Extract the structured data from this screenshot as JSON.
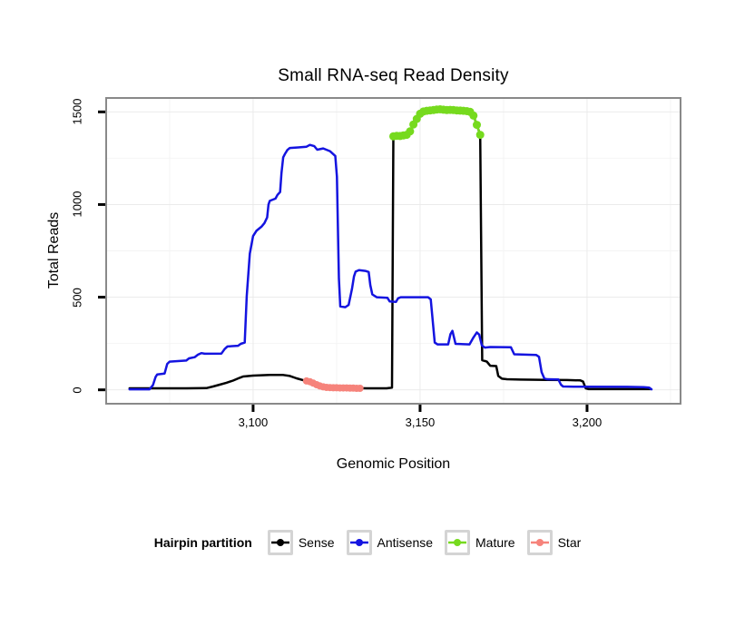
{
  "title": "Small RNA-seq Read Density",
  "legend": {
    "title": "Hairpin partition",
    "items": [
      {
        "label": "Sense",
        "color": "#000000"
      },
      {
        "label": "Antisense",
        "color": "#1414e0"
      },
      {
        "label": "Mature",
        "color": "#76da1e"
      },
      {
        "label": "Star",
        "color": "#f6837b"
      }
    ]
  },
  "chart_data": {
    "type": "line",
    "title": "Small RNA-seq Read Density",
    "xlabel": "Genomic Position",
    "ylabel": "Total Reads",
    "xlim": [
      3056,
      3228
    ],
    "ylim": [
      -75,
      1575
    ],
    "grid": true,
    "legend_position": "bottom",
    "x_ticks": [
      {
        "v": 3100,
        "label": "3,100"
      },
      {
        "v": 3150,
        "label": "3,150"
      },
      {
        "v": 3200,
        "label": "3,200"
      }
    ],
    "y_ticks": [
      {
        "v": 0,
        "label": "0"
      },
      {
        "v": 500,
        "label": "500"
      },
      {
        "v": 1000,
        "label": "1000"
      },
      {
        "v": 1500,
        "label": "1500"
      }
    ],
    "x_minor": [
      3075,
      3125,
      3175,
      3225
    ],
    "y_minor": [
      250,
      750,
      1250
    ],
    "panel_border_color": "#898989",
    "grid_major_color": "#ebebeb",
    "grid_minor_color": "#f4f4f4",
    "series": [
      {
        "name": "Sense",
        "color": "#000000",
        "style": "line",
        "points": [
          [
            3063,
            8
          ],
          [
            3070,
            8
          ],
          [
            3080,
            8
          ],
          [
            3086,
            9
          ],
          [
            3088,
            18
          ],
          [
            3090,
            28
          ],
          [
            3092,
            38
          ],
          [
            3094,
            50
          ],
          [
            3096,
            65
          ],
          [
            3097,
            72
          ],
          [
            3100,
            77
          ],
          [
            3105,
            80
          ],
          [
            3109,
            80
          ],
          [
            3111,
            75
          ],
          [
            3113,
            62
          ],
          [
            3115,
            52
          ],
          [
            3117,
            42
          ],
          [
            3119,
            28
          ],
          [
            3121,
            16
          ],
          [
            3123,
            12
          ],
          [
            3126,
            10
          ],
          [
            3130,
            9
          ],
          [
            3134,
            8
          ],
          [
            3140,
            8
          ],
          [
            3141.6,
            12
          ],
          [
            3142,
            1365
          ],
          [
            3143,
            1371
          ],
          [
            3144,
            1370
          ],
          [
            3145,
            1373
          ],
          [
            3146,
            1376
          ],
          [
            3147,
            1395
          ],
          [
            3148,
            1432
          ],
          [
            3149,
            1462
          ],
          [
            3150,
            1490
          ],
          [
            3151,
            1502
          ],
          [
            3153,
            1508
          ],
          [
            3155,
            1513
          ],
          [
            3158,
            1510
          ],
          [
            3161,
            1508
          ],
          [
            3164,
            1504
          ],
          [
            3165,
            1500
          ],
          [
            3166,
            1480
          ],
          [
            3167,
            1430
          ],
          [
            3168,
            1376
          ],
          [
            3168.6,
            160
          ],
          [
            3170,
            152
          ],
          [
            3171,
            130
          ],
          [
            3172.8,
            128
          ],
          [
            3173.4,
            75
          ],
          [
            3174.5,
            60
          ],
          [
            3176,
            57
          ],
          [
            3180,
            55
          ],
          [
            3188,
            54
          ],
          [
            3194,
            53
          ],
          [
            3198,
            51
          ],
          [
            3198.8,
            45
          ],
          [
            3199.6,
            8
          ],
          [
            3200.5,
            4
          ],
          [
            3210,
            4
          ],
          [
            3219,
            4
          ]
        ]
      },
      {
        "name": "Antisense",
        "color": "#1414e0",
        "style": "line",
        "points": [
          [
            3063,
            3
          ],
          [
            3069,
            3
          ],
          [
            3070,
            25
          ],
          [
            3070.8,
            70
          ],
          [
            3071.3,
            83
          ],
          [
            3073.5,
            88
          ],
          [
            3074.3,
            140
          ],
          [
            3075,
            152
          ],
          [
            3080,
            158
          ],
          [
            3080.8,
            170
          ],
          [
            3082.5,
            176
          ],
          [
            3083.5,
            190
          ],
          [
            3084.5,
            198
          ],
          [
            3085.5,
            195
          ],
          [
            3090.5,
            196
          ],
          [
            3091.5,
            220
          ],
          [
            3092.3,
            234
          ],
          [
            3095.5,
            238
          ],
          [
            3096.3,
            248
          ],
          [
            3097.5,
            255
          ],
          [
            3098.1,
            505
          ],
          [
            3099,
            735
          ],
          [
            3100,
            830
          ],
          [
            3101,
            858
          ],
          [
            3102.5,
            880
          ],
          [
            3103.4,
            900
          ],
          [
            3104.2,
            930
          ],
          [
            3104.6,
            1000
          ],
          [
            3105,
            1020
          ],
          [
            3106.7,
            1032
          ],
          [
            3107.3,
            1052
          ],
          [
            3108.1,
            1068
          ],
          [
            3108.5,
            1170
          ],
          [
            3109,
            1255
          ],
          [
            3109.5,
            1272
          ],
          [
            3110.3,
            1295
          ],
          [
            3111,
            1305
          ],
          [
            3113.5,
            1308
          ],
          [
            3116,
            1312
          ],
          [
            3117,
            1322
          ],
          [
            3118.3,
            1315
          ],
          [
            3119.2,
            1296
          ],
          [
            3121,
            1303
          ],
          [
            3123,
            1288
          ],
          [
            3124.6,
            1262
          ],
          [
            3125.1,
            1150
          ],
          [
            3125.7,
            600
          ],
          [
            3126.1,
            450
          ],
          [
            3127.6,
            446
          ],
          [
            3128.6,
            458
          ],
          [
            3129.6,
            545
          ],
          [
            3130.2,
            612
          ],
          [
            3130.7,
            638
          ],
          [
            3131.7,
            646
          ],
          [
            3133.6,
            642
          ],
          [
            3134.6,
            636
          ],
          [
            3135.1,
            565
          ],
          [
            3135.7,
            515
          ],
          [
            3137,
            500
          ],
          [
            3140.2,
            497
          ],
          [
            3140.9,
            477
          ],
          [
            3142.8,
            475
          ],
          [
            3143.4,
            494
          ],
          [
            3144.2,
            500
          ],
          [
            3152.4,
            500
          ],
          [
            3153.2,
            488
          ],
          [
            3154.4,
            255
          ],
          [
            3155.2,
            245
          ],
          [
            3158.4,
            245
          ],
          [
            3159.1,
            300
          ],
          [
            3159.7,
            318
          ],
          [
            3160.6,
            248
          ],
          [
            3164.8,
            245
          ],
          [
            3166,
            283
          ],
          [
            3167,
            310
          ],
          [
            3167.7,
            298
          ],
          [
            3168.5,
            240
          ],
          [
            3169.4,
            228
          ],
          [
            3171,
            231
          ],
          [
            3177.2,
            230
          ],
          [
            3178.2,
            192
          ],
          [
            3184.8,
            188
          ],
          [
            3185.6,
            178
          ],
          [
            3186.4,
            95
          ],
          [
            3187.2,
            62
          ],
          [
            3188,
            57
          ],
          [
            3191.4,
            56
          ],
          [
            3192.2,
            28
          ],
          [
            3192.8,
            18
          ],
          [
            3196,
            17
          ],
          [
            3212,
            16
          ],
          [
            3217,
            14
          ],
          [
            3218.6,
            12
          ],
          [
            3219.3,
            3
          ]
        ]
      },
      {
        "name": "Mature",
        "color": "#76da1e",
        "style": "points",
        "marker_radius": 4.5,
        "points": [
          [
            3142,
            1368
          ],
          [
            3143,
            1371
          ],
          [
            3144,
            1370
          ],
          [
            3145,
            1373
          ],
          [
            3146,
            1376
          ],
          [
            3147,
            1395
          ],
          [
            3148,
            1432
          ],
          [
            3149,
            1462
          ],
          [
            3150,
            1490
          ],
          [
            3151,
            1502
          ],
          [
            3152,
            1506
          ],
          [
            3153,
            1508
          ],
          [
            3154,
            1510
          ],
          [
            3155,
            1513
          ],
          [
            3156,
            1514
          ],
          [
            3157,
            1512
          ],
          [
            3158,
            1510
          ],
          [
            3159,
            1511
          ],
          [
            3160,
            1510
          ],
          [
            3161,
            1508
          ],
          [
            3162,
            1507
          ],
          [
            3163,
            1506
          ],
          [
            3164,
            1504
          ],
          [
            3165,
            1500
          ],
          [
            3166,
            1480
          ],
          [
            3167,
            1430
          ],
          [
            3168,
            1376
          ]
        ]
      },
      {
        "name": "Star",
        "color": "#f6837b",
        "style": "points",
        "marker_radius": 4,
        "points": [
          [
            3116,
            48
          ],
          [
            3117,
            44
          ],
          [
            3118,
            36
          ],
          [
            3119,
            28
          ],
          [
            3120,
            21
          ],
          [
            3121,
            16
          ],
          [
            3122,
            13
          ],
          [
            3123,
            12
          ],
          [
            3124,
            11
          ],
          [
            3125,
            11
          ],
          [
            3126,
            10
          ],
          [
            3127,
            10
          ],
          [
            3128,
            10
          ],
          [
            3129,
            9
          ],
          [
            3130,
            9
          ],
          [
            3131,
            8
          ],
          [
            3132,
            8
          ]
        ]
      }
    ]
  }
}
